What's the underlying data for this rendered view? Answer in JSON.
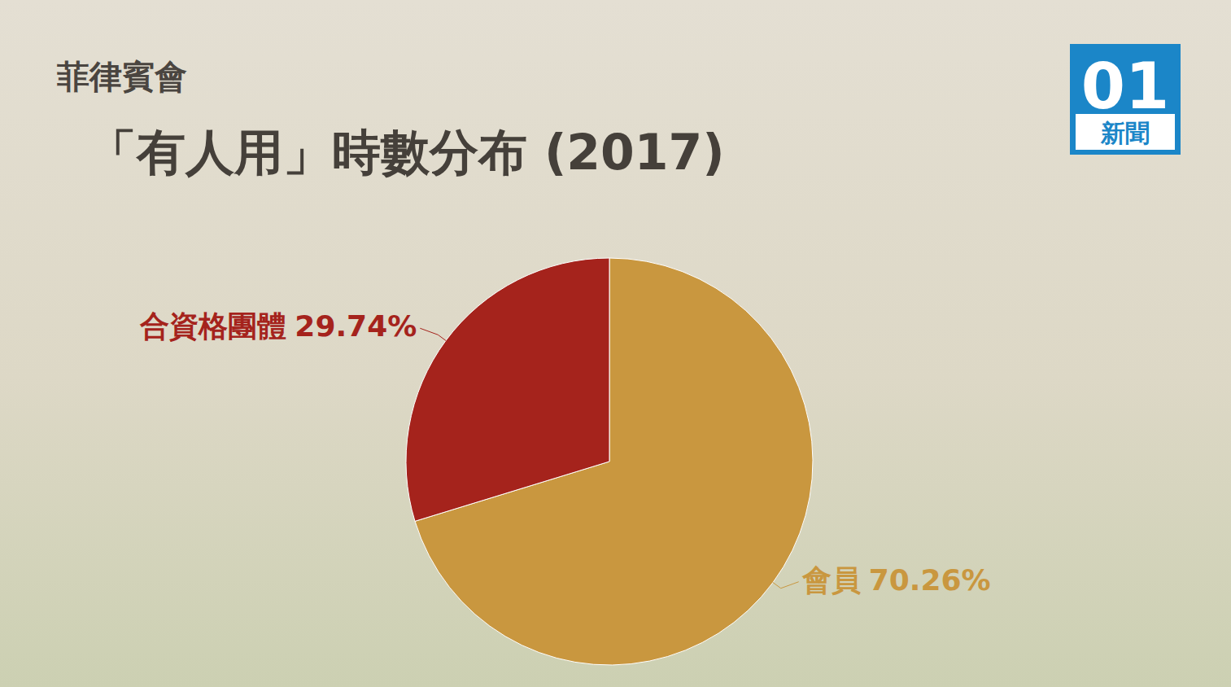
{
  "chart_data": {
    "type": "pie",
    "subtitle": "菲律賓會",
    "title": "「有人用」時數分布 (2017)",
    "categories": [
      "會員",
      "合資格團體"
    ],
    "values": [
      70.26,
      29.74
    ],
    "value_labels": [
      "70.26%",
      "29.74%"
    ],
    "colors": [
      "#c9973f",
      "#a5231c"
    ],
    "data_labels": true,
    "annotations": [
      "01",
      "新聞"
    ]
  }
}
